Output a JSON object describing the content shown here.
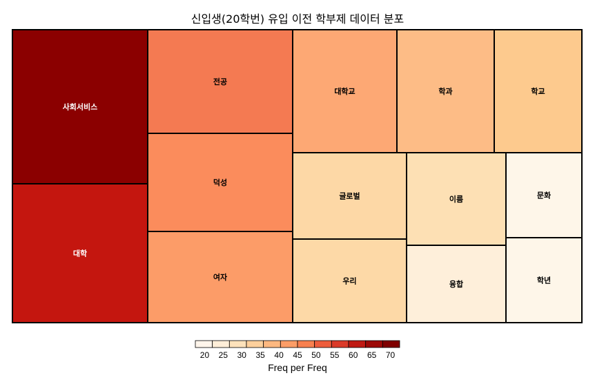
{
  "chart_data": {
    "type": "treemap",
    "title": "신입생(20학번) 유입 이전 학부제 데이터 분포",
    "value_name": "Freq",
    "color_name": "Freq",
    "items": [
      {
        "label": "사회서비스",
        "value": 70,
        "color": "#8b0000"
      },
      {
        "label": "대학",
        "value": 66,
        "color": "#c4160f"
      },
      {
        "label": "전공",
        "value": 47,
        "color": "#f47a52"
      },
      {
        "label": "덕성",
        "value": 44,
        "color": "#fb8c5c"
      },
      {
        "label": "여자",
        "value": 43,
        "color": "#fc9c68"
      },
      {
        "label": "대학교",
        "value": 40,
        "color": "#fda874"
      },
      {
        "label": "학과",
        "value": 37,
        "color": "#fdbc86"
      },
      {
        "label": "학교",
        "value": 34,
        "color": "#fdca8e"
      },
      {
        "label": "글로벌",
        "value": 31,
        "color": "#fdd8a6"
      },
      {
        "label": "우리",
        "value": 30,
        "color": "#fdd9a7"
      },
      {
        "label": "이름",
        "value": 28,
        "color": "#fde0b4"
      },
      {
        "label": "융합",
        "value": 22,
        "color": "#feefda"
      },
      {
        "label": "문화",
        "value": 20,
        "color": "#fef6e9"
      },
      {
        "label": "학년",
        "value": 20,
        "color": "#fef6e9"
      }
    ],
    "legend": {
      "title": "Freq per Freq",
      "ticks": [
        "20",
        "25",
        "30",
        "35",
        "40",
        "45",
        "50",
        "55",
        "60",
        "65",
        "70"
      ],
      "colors": [
        "#fff5eb",
        "#feeed8",
        "#fde2bb",
        "#fdd09c",
        "#fdb880",
        "#fc9d67",
        "#f8804f",
        "#ee5d3c",
        "#db3b2a",
        "#bf1a13",
        "#9c0906",
        "#7f0000"
      ]
    }
  }
}
